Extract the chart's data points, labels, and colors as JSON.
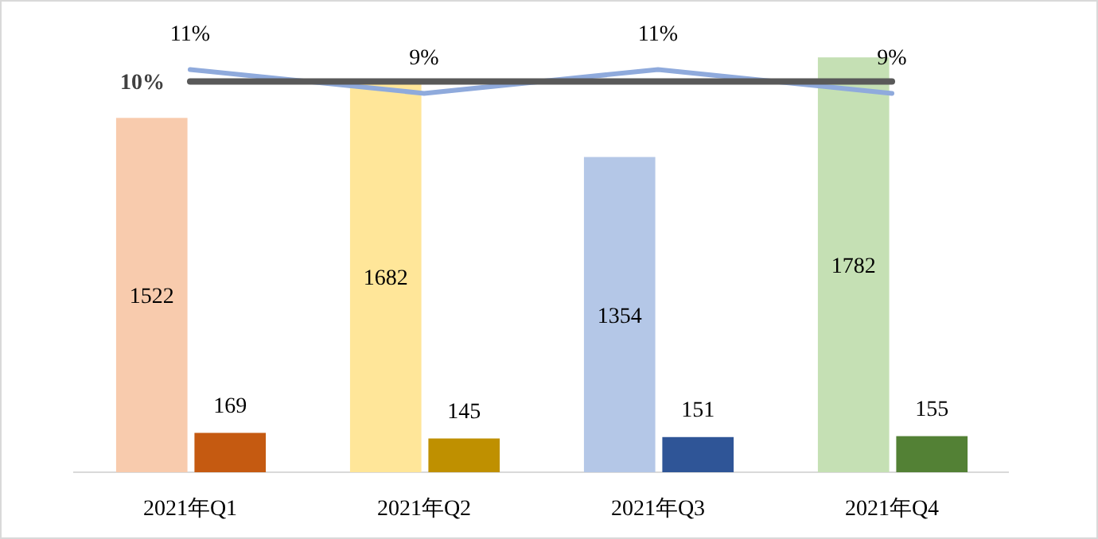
{
  "chart_data": {
    "type": "bar",
    "categories": [
      "2021年Q1",
      "2021年Q2",
      "2021年Q3",
      "2021年Q4"
    ],
    "series": [
      {
        "colors": [
          "#f8cbad",
          "#ffe699",
          "#b4c7e7",
          "#c5e0b4"
        ],
        "values": [
          1522,
          1682,
          1354,
          1782
        ],
        "value_labels": [
          "1522",
          "1682",
          "1354",
          "1782"
        ]
      },
      {
        "colors": [
          "#c55a11",
          "#bf9000",
          "#2f5597",
          "#538135"
        ],
        "values": [
          169,
          145,
          151,
          155
        ],
        "value_labels": [
          "169",
          "145",
          "151",
          "155"
        ]
      },
      {
        "type": "line",
        "axis": "y2",
        "color": "#8faadc",
        "values": [
          11,
          9,
          11,
          9
        ],
        "value_labels": [
          "11%",
          "9%",
          "11%",
          "9%"
        ]
      },
      {
        "type": "line",
        "axis": "y2",
        "color": "#595959",
        "values": [
          10,
          10,
          10,
          10
        ],
        "value_labels": [
          "10%",
          null,
          null,
          null
        ]
      }
    ],
    "tick_labels": "x"
  }
}
